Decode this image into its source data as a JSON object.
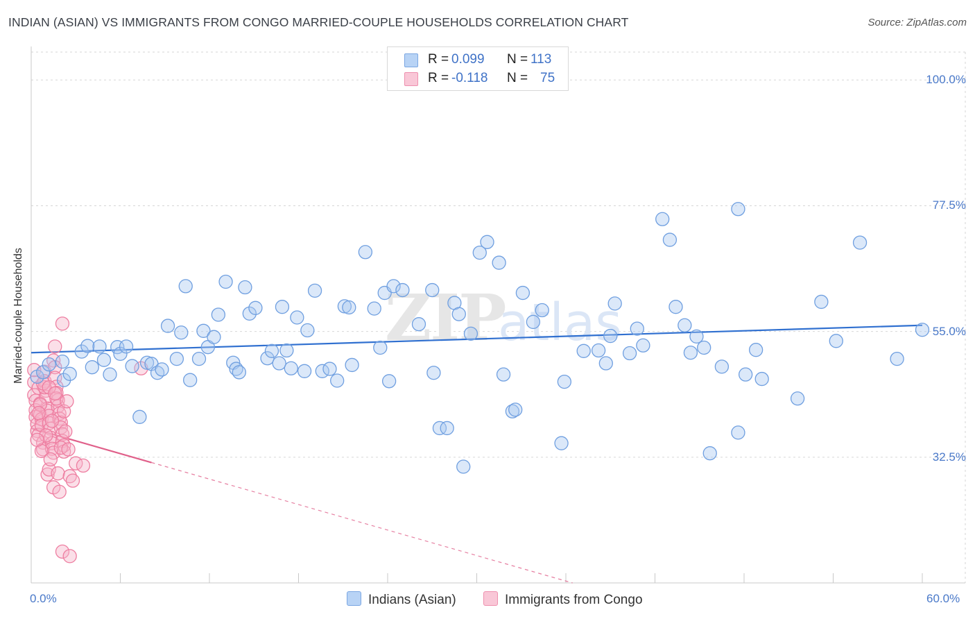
{
  "title": "INDIAN (ASIAN) VS IMMIGRANTS FROM CONGO MARRIED-COUPLE HOUSEHOLDS CORRELATION CHART",
  "source": "Source: ZipAtlas.com",
  "watermark": "ZIPatlas",
  "colors": {
    "blue_fill": "#a9c8f0",
    "blue_stroke": "#6f9fe0",
    "blue_line": "#3070d0",
    "pink_fill": "#f6b3c8",
    "pink_stroke": "#ee7ea1",
    "pink_line": "#e0608a",
    "grid": "#d6d6d6",
    "axis_text": "#4a79c9"
  },
  "legend": {
    "rows": [
      {
        "r_label": "R =",
        "r_value": "0.099",
        "n_label": "N =",
        "n_value": "113",
        "swatch": "#b8d3f5",
        "swatch_border": "#7aa6e2"
      },
      {
        "r_label": "R =",
        "r_value": "-0.118",
        "n_label": "N =",
        "n_value": "75",
        "swatch": "#f9c7d7",
        "swatch_border": "#ee8fae"
      }
    ]
  },
  "bottom_legend": [
    {
      "label": "Indians (Asian)",
      "swatch": "#b8d3f5",
      "swatch_border": "#7aa6e2"
    },
    {
      "label": "Immigrants from Congo",
      "swatch": "#f9c7d7",
      "swatch_border": "#ee8fae"
    }
  ],
  "chart_data": {
    "type": "scatter",
    "title": "INDIAN (ASIAN) VS IMMIGRANTS FROM CONGO MARRIED-COUPLE HOUSEHOLDS CORRELATION CHART",
    "xlabel": "",
    "ylabel": "Married-couple Households",
    "xlim": [
      0,
      60
    ],
    "ylim": [
      10,
      105
    ],
    "x_tick_labels": [
      "0.0%",
      "60.0%"
    ],
    "y_ticks": [
      32.5,
      55.0,
      77.5,
      100.0
    ],
    "y_tick_labels": [
      "32.5%",
      "55.0%",
      "77.5%",
      "100.0%"
    ],
    "grid": true,
    "legend_position": "top-center",
    "series": [
      {
        "name": "Indians (Asian)",
        "r": 0.099,
        "n": 113,
        "trend": {
          "x": [
            0,
            60
          ],
          "y": [
            51.2,
            56.1
          ],
          "dashed_extension": false
        },
        "points": [
          [
            0.4,
            46.9
          ],
          [
            0.8,
            47.7
          ],
          [
            1.2,
            49.1
          ],
          [
            2.1,
            49.6
          ],
          [
            2.2,
            46.3
          ],
          [
            2.6,
            47.4
          ],
          [
            3.4,
            51.4
          ],
          [
            3.8,
            52.4
          ],
          [
            4.1,
            48.6
          ],
          [
            4.6,
            52.3
          ],
          [
            4.9,
            49.9
          ],
          [
            5.3,
            47.3
          ],
          [
            5.8,
            52.2
          ],
          [
            6.0,
            51.0
          ],
          [
            6.4,
            52.3
          ],
          [
            6.8,
            48.8
          ],
          [
            7.3,
            39.7
          ],
          [
            7.8,
            49.4
          ],
          [
            8.1,
            49.2
          ],
          [
            8.5,
            47.6
          ],
          [
            8.8,
            48.2
          ],
          [
            9.2,
            56.0
          ],
          [
            9.8,
            50.1
          ],
          [
            10.1,
            54.8
          ],
          [
            10.4,
            63.1
          ],
          [
            10.7,
            46.3
          ],
          [
            11.3,
            50.1
          ],
          [
            11.6,
            55.1
          ],
          [
            11.9,
            52.2
          ],
          [
            12.3,
            54.0
          ],
          [
            12.6,
            58.0
          ],
          [
            13.1,
            63.9
          ],
          [
            13.6,
            49.4
          ],
          [
            13.8,
            48.3
          ],
          [
            14.0,
            47.7
          ],
          [
            14.4,
            62.9
          ],
          [
            14.7,
            58.2
          ],
          [
            15.1,
            59.2
          ],
          [
            15.9,
            50.2
          ],
          [
            16.2,
            51.5
          ],
          [
            16.7,
            49.3
          ],
          [
            16.9,
            59.4
          ],
          [
            17.2,
            51.6
          ],
          [
            17.5,
            48.4
          ],
          [
            17.9,
            57.5
          ],
          [
            18.4,
            47.9
          ],
          [
            18.6,
            55.2
          ],
          [
            19.1,
            62.3
          ],
          [
            19.6,
            47.9
          ],
          [
            20.1,
            48.3
          ],
          [
            20.6,
            46.2
          ],
          [
            21.1,
            59.5
          ],
          [
            21.4,
            59.3
          ],
          [
            21.6,
            49.0
          ],
          [
            22.5,
            69.2
          ],
          [
            23.1,
            59.1
          ],
          [
            23.5,
            52.1
          ],
          [
            23.8,
            61.9
          ],
          [
            24.1,
            46.1
          ],
          [
            24.4,
            63.1
          ],
          [
            25.0,
            62.4
          ],
          [
            26.1,
            56.3
          ],
          [
            27.0,
            62.4
          ],
          [
            27.1,
            47.6
          ],
          [
            27.5,
            37.7
          ],
          [
            28.0,
            37.7
          ],
          [
            28.5,
            60.1
          ],
          [
            28.8,
            58.1
          ],
          [
            29.1,
            30.8
          ],
          [
            29.6,
            54.6
          ],
          [
            30.2,
            69.1
          ],
          [
            30.7,
            71.0
          ],
          [
            31.5,
            67.3
          ],
          [
            31.8,
            47.3
          ],
          [
            32.4,
            40.7
          ],
          [
            32.6,
            41.0
          ],
          [
            33.1,
            61.9
          ],
          [
            33.8,
            56.7
          ],
          [
            34.4,
            58.8
          ],
          [
            35.7,
            35.0
          ],
          [
            35.9,
            46.0
          ],
          [
            37.2,
            51.5
          ],
          [
            38.2,
            51.6
          ],
          [
            38.7,
            49.3
          ],
          [
            39.0,
            54.2
          ],
          [
            39.3,
            60.0
          ],
          [
            40.3,
            51.1
          ],
          [
            40.8,
            55.5
          ],
          [
            41.2,
            52.5
          ],
          [
            42.5,
            75.1
          ],
          [
            43.0,
            71.4
          ],
          [
            43.4,
            59.4
          ],
          [
            44.0,
            56.1
          ],
          [
            44.4,
            51.2
          ],
          [
            44.8,
            54.1
          ],
          [
            45.3,
            52.1
          ],
          [
            45.7,
            33.2
          ],
          [
            46.5,
            48.7
          ],
          [
            47.6,
            76.9
          ],
          [
            47.6,
            36.9
          ],
          [
            48.1,
            47.3
          ],
          [
            48.8,
            51.7
          ],
          [
            49.2,
            46.5
          ],
          [
            51.6,
            43.0
          ],
          [
            53.2,
            60.3
          ],
          [
            54.2,
            53.3
          ],
          [
            55.8,
            70.9
          ],
          [
            58.3,
            50.1
          ],
          [
            60.0,
            55.3
          ]
        ]
      },
      {
        "name": "Immigrants from Congo",
        "r": -0.118,
        "n": 75,
        "trend": {
          "x": [
            0,
            60
          ],
          "y": [
            37.7,
            -7.9
          ],
          "solid_until_x": 8.1,
          "dashed_extension": true
        },
        "points": [
          [
            0.2,
            45.9
          ],
          [
            0.2,
            43.6
          ],
          [
            0.3,
            42.6
          ],
          [
            0.3,
            40.9
          ],
          [
            0.3,
            39.7
          ],
          [
            0.4,
            38.4
          ],
          [
            0.4,
            37.2
          ],
          [
            0.5,
            36.5
          ],
          [
            0.5,
            44.9
          ],
          [
            0.6,
            42.1
          ],
          [
            0.6,
            40.1
          ],
          [
            0.7,
            39.3
          ],
          [
            0.7,
            38.2
          ],
          [
            0.8,
            35.1
          ],
          [
            0.8,
            33.9
          ],
          [
            0.9,
            47.8
          ],
          [
            0.9,
            46.1
          ],
          [
            1.0,
            44.4
          ],
          [
            1.0,
            43.3
          ],
          [
            1.1,
            41.2
          ],
          [
            1.1,
            40.8
          ],
          [
            1.2,
            39.9
          ],
          [
            1.2,
            38.6
          ],
          [
            1.3,
            37.6
          ],
          [
            1.3,
            36.0
          ],
          [
            1.4,
            35.0
          ],
          [
            1.4,
            34.0
          ],
          [
            1.5,
            33.3
          ],
          [
            1.5,
            49.8
          ],
          [
            1.6,
            48.6
          ],
          [
            1.6,
            46.7
          ],
          [
            1.7,
            45.1
          ],
          [
            1.7,
            44.0
          ],
          [
            1.8,
            42.7
          ],
          [
            1.8,
            41.6
          ],
          [
            1.9,
            40.3
          ],
          [
            1.9,
            39.4
          ],
          [
            2.0,
            38.7
          ],
          [
            2.0,
            37.8
          ],
          [
            2.1,
            36.6
          ],
          [
            2.1,
            35.4
          ],
          [
            2.2,
            34.6
          ],
          [
            2.2,
            33.5
          ],
          [
            0.2,
            48.1
          ],
          [
            0.6,
            41.9
          ],
          [
            0.7,
            33.6
          ],
          [
            0.9,
            45.0
          ],
          [
            1.0,
            36.4
          ],
          [
            1.1,
            29.4
          ],
          [
            1.2,
            30.3
          ],
          [
            1.3,
            32.1
          ],
          [
            1.5,
            27.1
          ],
          [
            1.6,
            52.3
          ],
          [
            1.7,
            43.0
          ],
          [
            1.8,
            29.6
          ],
          [
            1.9,
            26.3
          ],
          [
            2.0,
            34.2
          ],
          [
            2.1,
            56.4
          ],
          [
            2.2,
            40.7
          ],
          [
            2.3,
            37.1
          ],
          [
            2.5,
            33.9
          ],
          [
            2.6,
            29.1
          ],
          [
            2.8,
            28.3
          ],
          [
            3.0,
            31.4
          ],
          [
            3.5,
            31.0
          ],
          [
            7.4,
            48.4
          ],
          [
            2.1,
            15.6
          ],
          [
            2.6,
            14.8
          ],
          [
            0.5,
            40.4
          ],
          [
            1.4,
            39.0
          ],
          [
            0.8,
            45.7
          ],
          [
            1.2,
            45.0
          ],
          [
            0.4,
            35.6
          ],
          [
            1.6,
            43.9
          ],
          [
            2.4,
            42.5
          ]
        ]
      }
    ]
  }
}
